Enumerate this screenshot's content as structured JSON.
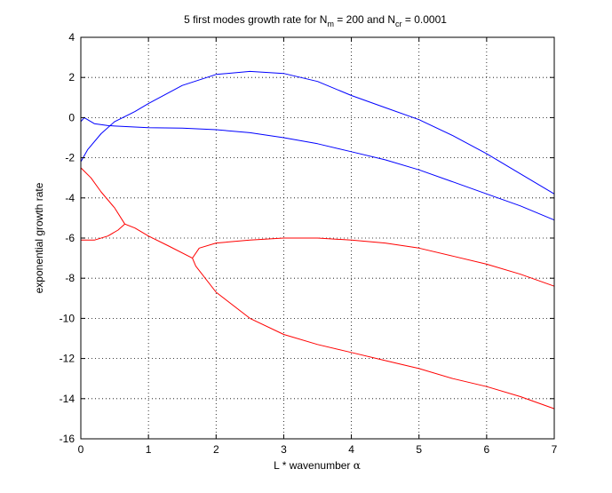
{
  "chart_data": {
    "type": "line",
    "title": {
      "prefix": "5 first modes growth rate for N",
      "sub1": "m",
      "mid": " = 200 and N",
      "sub2": "cr",
      "suffix": " = 0.0001"
    },
    "xlabel": {
      "text": "L * wavenumber ",
      "symbol": "α"
    },
    "ylabel": "exponential growth rate",
    "xlim": [
      0,
      7
    ],
    "ylim": [
      -16,
      4
    ],
    "xticks": [
      "0",
      "1",
      "2",
      "3",
      "4",
      "5",
      "6",
      "7"
    ],
    "yticks": [
      "-16",
      "-14",
      "-12",
      "-10",
      "-8",
      "-6",
      "-4",
      "-2",
      "0",
      "2",
      "4"
    ],
    "grid": true,
    "colors": {
      "blue": "#0000ff",
      "red": "#ff0000"
    },
    "series": [
      {
        "color": "#0000ff",
        "x": [
          0,
          0.1,
          0.3,
          0.5,
          0.8,
          1.0,
          1.5,
          2.0,
          2.5,
          3.0,
          3.5,
          4.0,
          4.5,
          5.0,
          5.5,
          6.0,
          6.5,
          7.0
        ],
        "y": [
          -2.2,
          -1.6,
          -0.8,
          -0.2,
          0.3,
          0.7,
          1.6,
          2.15,
          2.3,
          2.2,
          1.8,
          1.1,
          0.5,
          -0.1,
          -0.9,
          -1.8,
          -2.8,
          -3.8
        ]
      },
      {
        "color": "#0000ff",
        "x": [
          0,
          0.05,
          0.1,
          0.2,
          0.4,
          0.7,
          1.0,
          1.5,
          2.0,
          2.5,
          3.0,
          3.5,
          4.0,
          4.5,
          5.0,
          5.5,
          6.0,
          6.5,
          7.0
        ],
        "y": [
          -0.2,
          0.0,
          -0.1,
          -0.3,
          -0.4,
          -0.45,
          -0.5,
          -0.52,
          -0.6,
          -0.75,
          -1.0,
          -1.3,
          -1.7,
          -2.1,
          -2.6,
          -3.2,
          -3.8,
          -4.4,
          -5.1
        ]
      },
      {
        "color": "#ff0000",
        "x": [
          0,
          0.15,
          0.3,
          0.5,
          0.65,
          0.8,
          1.0,
          1.3,
          1.65,
          1.7,
          2.0,
          2.5,
          3.0,
          3.5,
          4.0,
          4.5,
          5.0,
          5.5,
          6.0,
          6.5,
          7.0
        ],
        "y": [
          -2.5,
          -3.0,
          -3.7,
          -4.5,
          -5.3,
          -5.5,
          -5.9,
          -6.4,
          -7.0,
          -7.4,
          -8.7,
          -10.0,
          -10.8,
          -11.3,
          -11.7,
          -12.1,
          -12.5,
          -13.0,
          -13.4,
          -13.9,
          -14.5
        ]
      },
      {
        "color": "#ff0000",
        "x": [
          0,
          0.2,
          0.4,
          0.55,
          0.65
        ],
        "y": [
          -6.1,
          -6.1,
          -5.9,
          -5.6,
          -5.3
        ]
      },
      {
        "color": "#ff0000",
        "x": [
          1.65,
          1.75,
          2.0,
          2.5,
          3.0,
          3.5,
          4.0,
          4.5,
          5.0,
          5.5,
          6.0,
          6.5,
          7.0
        ],
        "y": [
          -7.0,
          -6.5,
          -6.25,
          -6.1,
          -6.0,
          -6.0,
          -6.1,
          -6.25,
          -6.5,
          -6.9,
          -7.3,
          -7.8,
          -8.4
        ]
      }
    ]
  }
}
